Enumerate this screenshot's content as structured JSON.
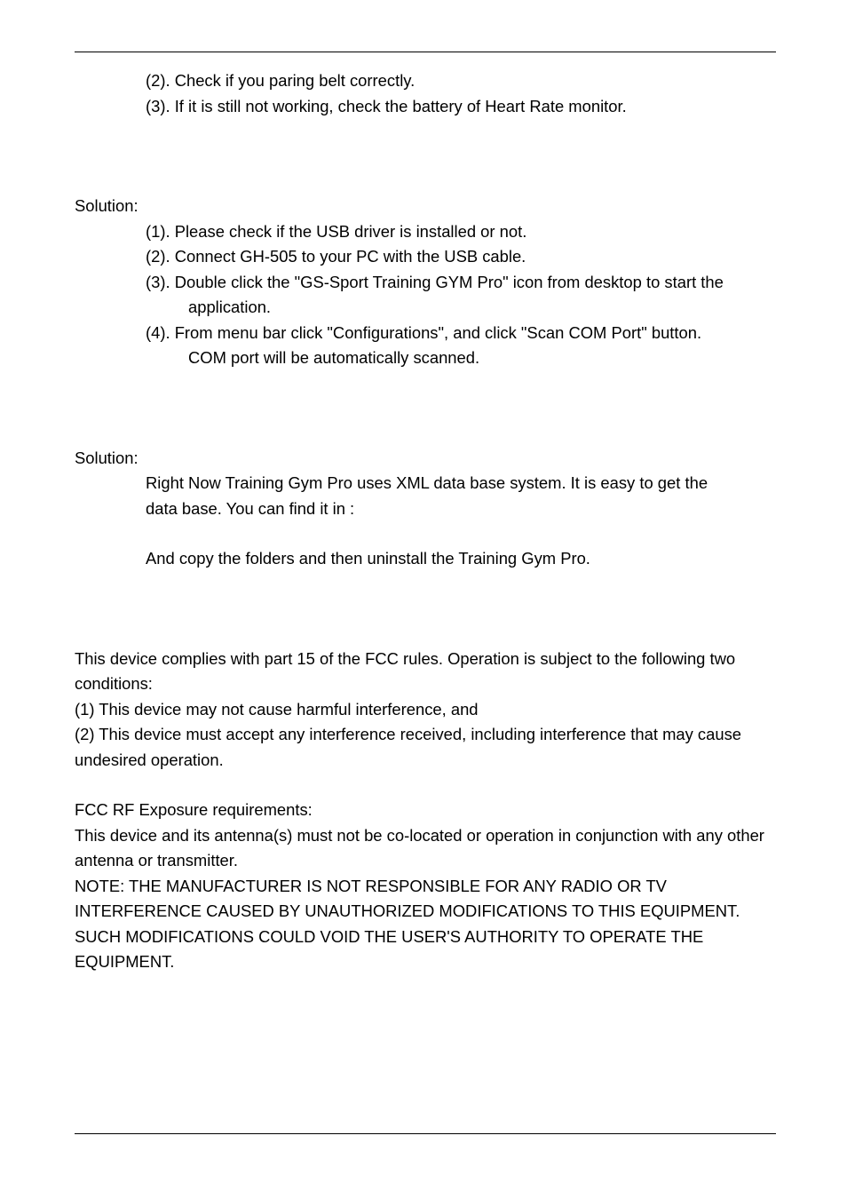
{
  "list1": {
    "i2": "(2). Check if you paring belt correctly.",
    "i3": "(3). If it is still not working, check the battery of Heart Rate monitor."
  },
  "sol1": {
    "label": "Solution:",
    "i1": "(1). Please check if the USB driver is installed or not.",
    "i2": "(2). Connect GH-505 to your PC with the USB cable.",
    "i3a": "(3). Double click the \"GS-Sport Training GYM Pro\" icon from desktop to start the",
    "i3b": "application.",
    "i4a": "(4). From menu bar click \"Configurations\", and click \"Scan COM Port\" button.",
    "i4b": "COM port will be automatically scanned."
  },
  "sol2": {
    "label": "Solution:",
    "p1a": "Right Now Training Gym Pro uses XML data base system. It is easy to get the",
    "p1b": "data base. You can find it in :",
    "p2": "And copy the folders and then uninstall the Training Gym Pro."
  },
  "fcc": {
    "p1": "This device complies with part 15 of the FCC rules. Operation is subject to the following two conditions:",
    "p2": "(1) This device may not cause harmful interference, and",
    "p3": "(2) This device must accept any interference received, including interference that may cause undesired operation.",
    "h1": "FCC RF Exposure requirements:",
    "p4": "This device and its antenna(s) must not be co-located or operation in conjunction with any other antenna or transmitter.",
    "p5": "NOTE: THE MANUFACTURER IS NOT RESPONSIBLE FOR ANY RADIO OR TV INTERFERENCE CAUSED BY UNAUTHORIZED MODIFICATIONS TO THIS EQUIPMENT. SUCH MODIFICATIONS COULD VOID THE USER'S AUTHORITY TO OPERATE THE EQUIPMENT."
  }
}
